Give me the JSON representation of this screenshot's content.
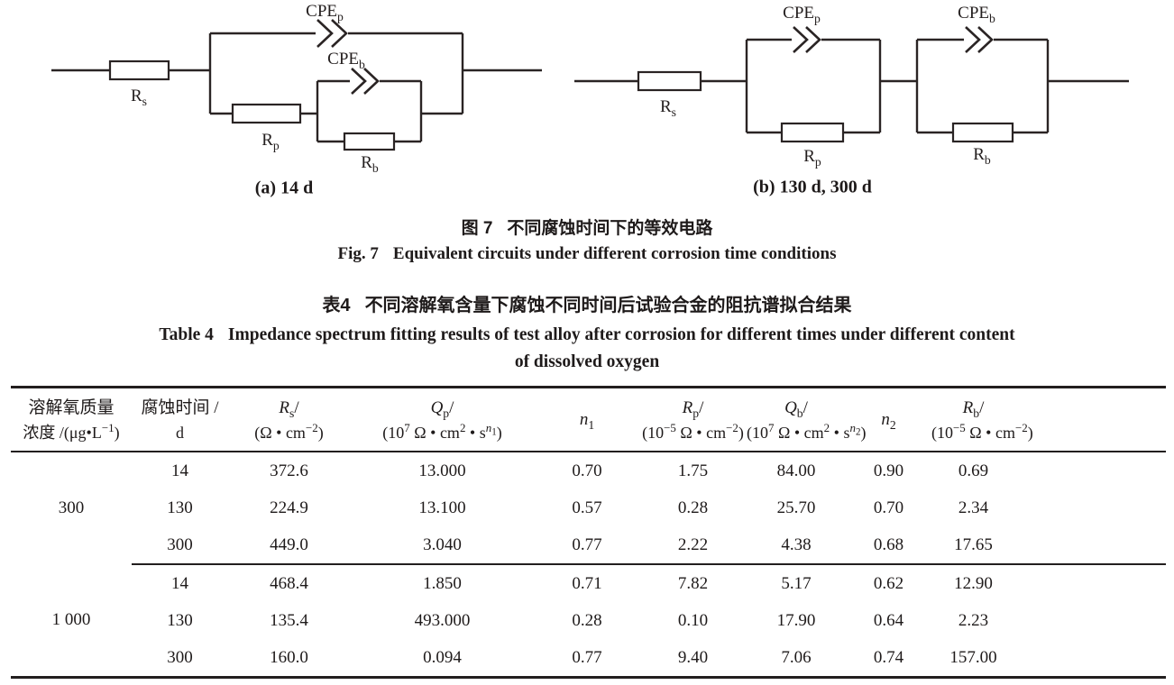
{
  "figure": {
    "circuit_a": {
      "caption": "(a) 14 d",
      "cpe_p_label": "CPE~p~",
      "cpe_b_label": "CPE~b~",
      "r_s_label": "R~s~",
      "r_p_label": "R~p~",
      "r_b_label": "R~b~"
    },
    "circuit_b": {
      "caption": "(b) 130 d, 300 d",
      "cpe_p_label": "CPE~p~",
      "cpe_b_label": "CPE~b~",
      "r_s_label": "R~s~",
      "r_p_label": "R~p~",
      "r_b_label": "R~b~"
    },
    "caption_zh": {
      "prefix": "图 7",
      "text": "不同腐蚀时间下的等效电路"
    },
    "caption_en": {
      "prefix": "Fig. 7",
      "text": "Equivalent circuits under different corrosion time conditions"
    }
  },
  "table": {
    "title_zh": {
      "prefix": "表4",
      "text": "不同溶解氧含量下腐蚀不同时间后试验合金的阻抗谱拟合结果"
    },
    "title_en_line1": {
      "prefix": "Table 4",
      "text": "Impedance spectrum fitting results of test alloy after corrosion for different times under different content"
    },
    "title_en_line2": "of dissolved oxygen",
    "headers": [
      {
        "line1": "溶解氧质量",
        "line2": "浓度 /(μg•L^−1^)"
      },
      {
        "line1": "腐蚀时间 /",
        "line2": "d"
      },
      {
        "line1": "*R*~s~/",
        "line2": "(Ω • cm^−2^)"
      },
      {
        "line1": "*Q*~p~/",
        "line2": "(10^7^ Ω • cm^2^ • s^*n*~1~^)"
      },
      {
        "line1": "*n*~1~"
      },
      {
        "line1": "*R*~p~/",
        "line2": "(10^−5^ Ω • cm^−2^)"
      },
      {
        "line1": "*Q*~b~/",
        "line2": "(10^7^ Ω • cm^2^ • s^*n*~2~^)"
      },
      {
        "line1": "*n*~2~"
      },
      {
        "line1": "*R*~b~/",
        "line2": "(10^−5^ Ω • cm^−2^)"
      }
    ],
    "groups": [
      {
        "concentration": "300",
        "rows": [
          {
            "time": "14",
            "rs": "372.6",
            "qp": "13.000",
            "n1": "0.70",
            "rp": "1.75",
            "qb": "84.00",
            "n2": "0.90",
            "rb": "0.69"
          },
          {
            "time": "130",
            "rs": "224.9",
            "qp": "13.100",
            "n1": "0.57",
            "rp": "0.28",
            "qb": "25.70",
            "n2": "0.70",
            "rb": "2.34"
          },
          {
            "time": "300",
            "rs": "449.0",
            "qp": "3.040",
            "n1": "0.77",
            "rp": "2.22",
            "qb": "4.38",
            "n2": "0.68",
            "rb": "17.65"
          }
        ]
      },
      {
        "concentration": "1 000",
        "rows": [
          {
            "time": "14",
            "rs": "468.4",
            "qp": "1.850",
            "n1": "0.71",
            "rp": "7.82",
            "qb": "5.17",
            "n2": "0.62",
            "rb": "12.90"
          },
          {
            "time": "130",
            "rs": "135.4",
            "qp": "493.000",
            "n1": "0.28",
            "rp": "0.10",
            "qb": "17.90",
            "n2": "0.64",
            "rb": "2.23"
          },
          {
            "time": "300",
            "rs": "160.0",
            "qp": "0.094",
            "n1": "0.77",
            "rp": "9.40",
            "qb": "7.06",
            "n2": "0.74",
            "rb": "157.00"
          }
        ]
      }
    ]
  },
  "colors": {
    "ink": "#1e1a1a",
    "wire": "#2a2424"
  }
}
